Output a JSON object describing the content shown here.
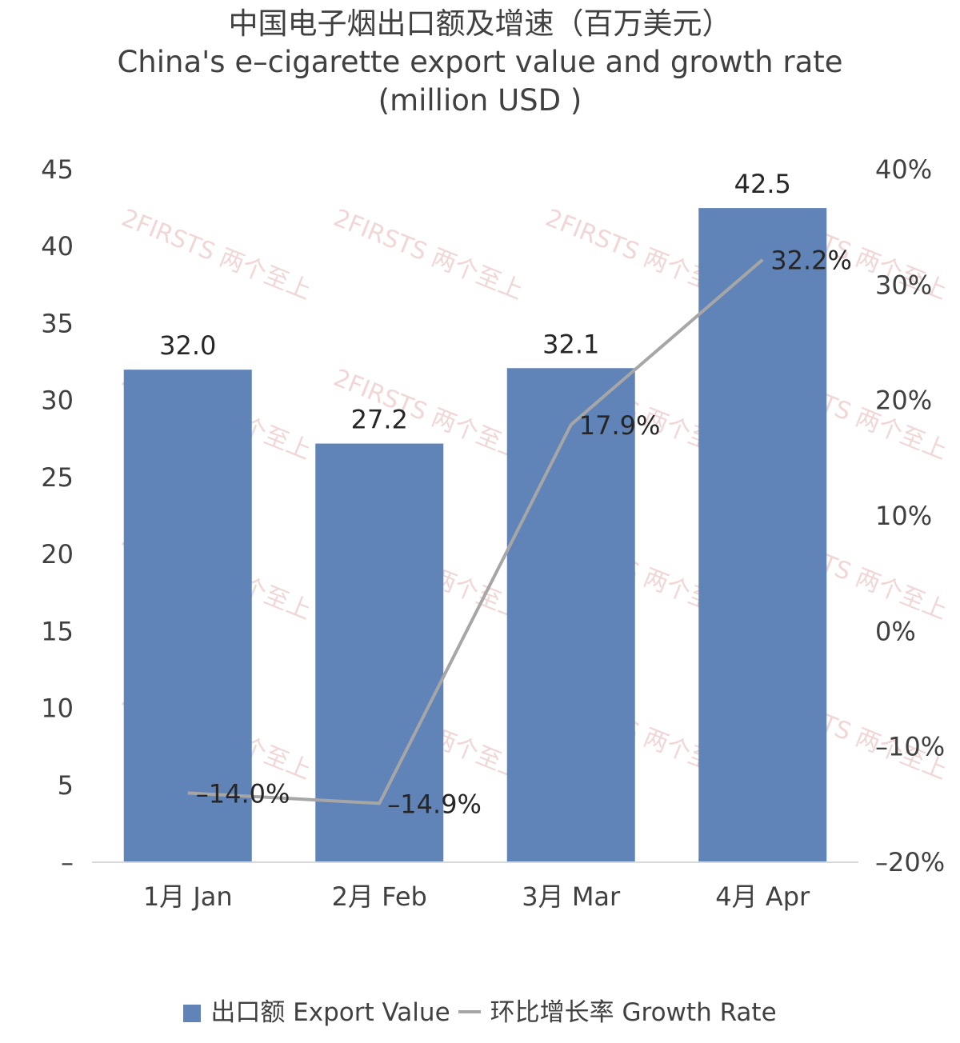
{
  "chart_data": {
    "type": "bar",
    "title_cn": "中国电子烟出口额及增速（百万美元）",
    "title_en": "China's e–cigarette export value and growth rate",
    "title_unit": "(million USD )",
    "categories": [
      "1月 Jan",
      "2月 Feb",
      "3月 Mar",
      "4月 Apr"
    ],
    "series": [
      {
        "name": "出口额 Export Value",
        "type": "bar",
        "axis": "left",
        "values": [
          32.0,
          27.2,
          32.1,
          42.5
        ],
        "labels": [
          "32.0",
          "27.2",
          "32.1",
          "42.5"
        ]
      },
      {
        "name": "环比增长率 Growth Rate",
        "type": "line",
        "axis": "right",
        "values": [
          -14.0,
          -14.9,
          17.9,
          32.2
        ],
        "labels": [
          "–14.0%",
          "–14.9%",
          "17.9%",
          "32.2%"
        ]
      }
    ],
    "left_axis": {
      "ylim": [
        0,
        45
      ],
      "ticks": [
        0,
        5,
        10,
        15,
        20,
        25,
        30,
        35,
        40,
        45
      ],
      "tick_labels": [
        "–",
        "5",
        "10",
        "15",
        "20",
        "25",
        "30",
        "35",
        "40",
        "45"
      ]
    },
    "right_axis": {
      "ylim": [
        -20,
        40
      ],
      "ticks": [
        -20,
        -10,
        0,
        10,
        20,
        30,
        40
      ],
      "tick_labels": [
        "–20%",
        "–10%",
        "0%",
        "10%",
        "20%",
        "30%",
        "40%"
      ]
    },
    "grid": false,
    "legend": "bottom",
    "watermark": "2FIRSTS 两个至上",
    "colors": {
      "bar": "#6083b8",
      "line": "#a6a6a6",
      "text": "#404040",
      "watermark": "#e6b6b6"
    }
  }
}
